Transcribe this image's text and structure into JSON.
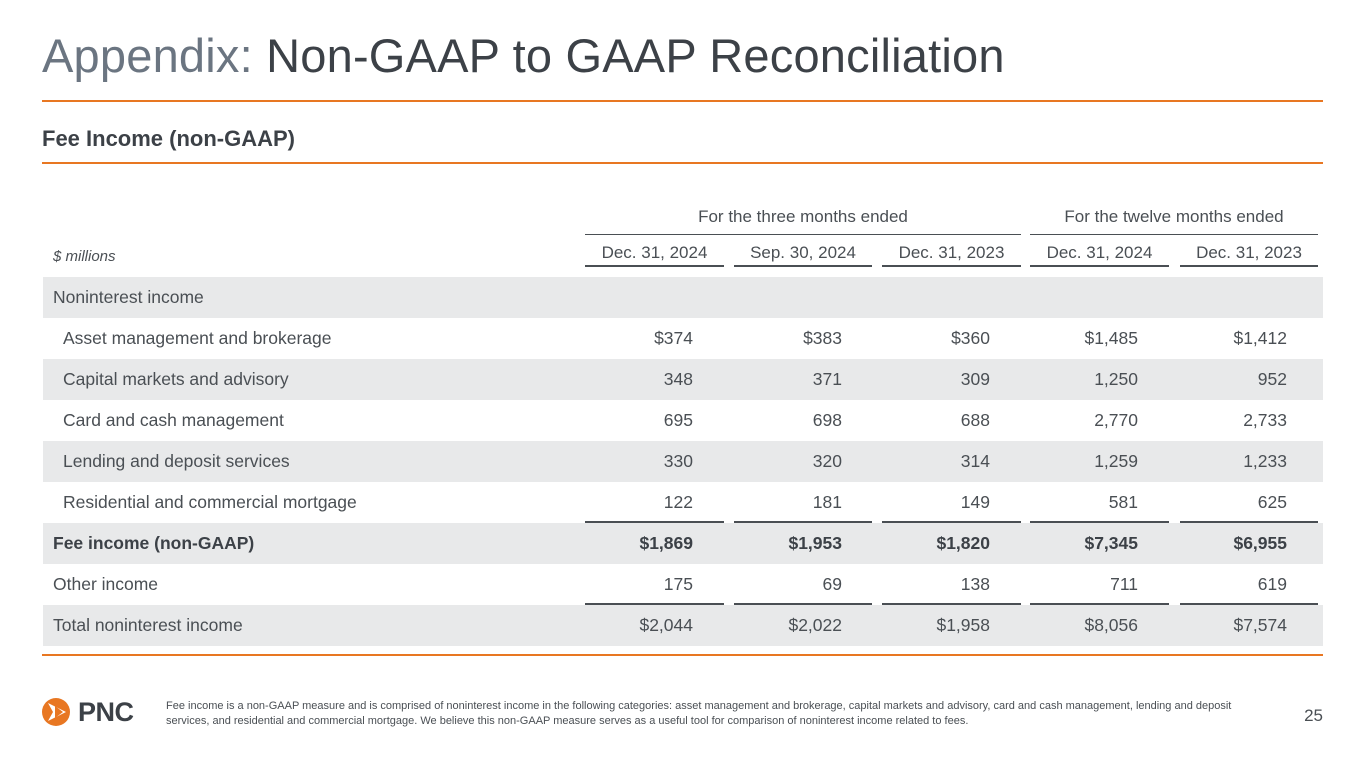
{
  "slide": {
    "title_prefix": "Appendix:",
    "title_main": "Non-GAAP to GAAP Reconciliation",
    "subtitle": "Fee Income (non-GAAP)",
    "page_number": "25"
  },
  "table": {
    "units": "$ millions",
    "groups": [
      "For the three months ended",
      "For the twelve months ended"
    ],
    "columns": [
      "Dec. 31, 2024",
      "Sep. 30, 2024",
      "Dec. 31, 2023",
      "Dec. 31, 2024",
      "Dec. 31, 2023"
    ],
    "rows": [
      {
        "label": "Noninterest income",
        "values": [
          "",
          "",
          "",
          "",
          ""
        ]
      },
      {
        "label": "Asset management and brokerage",
        "values": [
          "$374",
          "$383",
          "$360",
          "$1,485",
          "$1,412"
        ]
      },
      {
        "label": "Capital markets and advisory",
        "values": [
          "348",
          "371",
          "309",
          "1,250",
          "952"
        ]
      },
      {
        "label": "Card and cash management",
        "values": [
          "695",
          "698",
          "688",
          "2,770",
          "2,733"
        ]
      },
      {
        "label": "Lending and deposit services",
        "values": [
          "330",
          "320",
          "314",
          "1,259",
          "1,233"
        ]
      },
      {
        "label": "Residential and commercial mortgage",
        "values": [
          "122",
          "181",
          "149",
          "581",
          "625"
        ]
      },
      {
        "label": "Fee income (non-GAAP)",
        "values": [
          "$1,869",
          "$1,953",
          "$1,820",
          "$7,345",
          "$6,955"
        ]
      },
      {
        "label": "Other income",
        "values": [
          "175",
          "69",
          "138",
          "711",
          "619"
        ]
      },
      {
        "label": "Total noninterest income",
        "values": [
          "$2,044",
          "$2,022",
          "$1,958",
          "$8,056",
          "$7,574"
        ]
      }
    ]
  },
  "footer": {
    "logo_text": "PNC",
    "logo_icon": "pnc-logo-icon",
    "footnote": "Fee income is a non-GAAP measure and is comprised of noninterest income in the following categories: asset management and brokerage, capital markets and advisory, card and cash management, lending and deposit services, and residential and commercial mortgage. We believe this non-GAAP measure serves as a useful tool for comparison of noninterest income related to fees."
  },
  "colors": {
    "accent": "#e87722",
    "text": "#4a4f54",
    "row_shade": "#e8e9ea"
  }
}
